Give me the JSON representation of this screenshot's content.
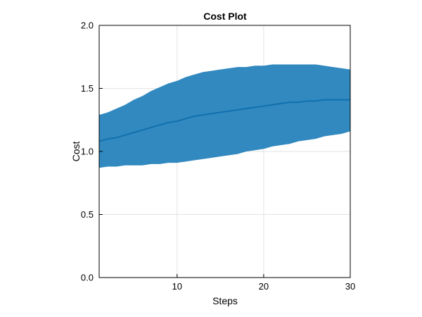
{
  "chart_data": {
    "type": "area",
    "title": "Cost Plot",
    "xlabel": "Steps",
    "ylabel": "Cost",
    "xlim": [
      1,
      30
    ],
    "ylim": [
      0,
      2.0
    ],
    "xticks": [
      10,
      20,
      30
    ],
    "xtick_labels": [
      "10",
      "20",
      "30"
    ],
    "yticks": [
      0,
      0.5,
      1.0,
      1.5,
      2.0
    ],
    "ytick_labels": [
      "0.0",
      "0.5",
      "1.0",
      "1.5",
      "2.0"
    ],
    "grid": true,
    "colors": {
      "band": "#1f7fba",
      "line": "#1270ad"
    },
    "x": [
      1,
      2,
      3,
      4,
      5,
      6,
      7,
      8,
      9,
      10,
      11,
      12,
      13,
      14,
      15,
      16,
      17,
      18,
      19,
      20,
      21,
      22,
      23,
      24,
      25,
      26,
      27,
      28,
      29,
      30
    ],
    "series": [
      {
        "mean": [
          1.08,
          1.1,
          1.11,
          1.13,
          1.15,
          1.17,
          1.19,
          1.21,
          1.23,
          1.24,
          1.26,
          1.28,
          1.29,
          1.3,
          1.31,
          1.32,
          1.33,
          1.34,
          1.35,
          1.36,
          1.37,
          1.38,
          1.39,
          1.39,
          1.4,
          1.4,
          1.41,
          1.41,
          1.41,
          1.41
        ],
        "upper": [
          1.29,
          1.31,
          1.34,
          1.37,
          1.41,
          1.44,
          1.48,
          1.51,
          1.54,
          1.56,
          1.59,
          1.61,
          1.63,
          1.64,
          1.65,
          1.66,
          1.67,
          1.67,
          1.68,
          1.68,
          1.69,
          1.69,
          1.69,
          1.69,
          1.69,
          1.69,
          1.68,
          1.67,
          1.66,
          1.65
        ],
        "lower": [
          0.87,
          0.88,
          0.88,
          0.89,
          0.89,
          0.89,
          0.9,
          0.9,
          0.91,
          0.91,
          0.92,
          0.93,
          0.94,
          0.95,
          0.96,
          0.97,
          0.98,
          1.0,
          1.01,
          1.02,
          1.04,
          1.05,
          1.06,
          1.08,
          1.09,
          1.1,
          1.12,
          1.13,
          1.14,
          1.16
        ]
      }
    ]
  }
}
